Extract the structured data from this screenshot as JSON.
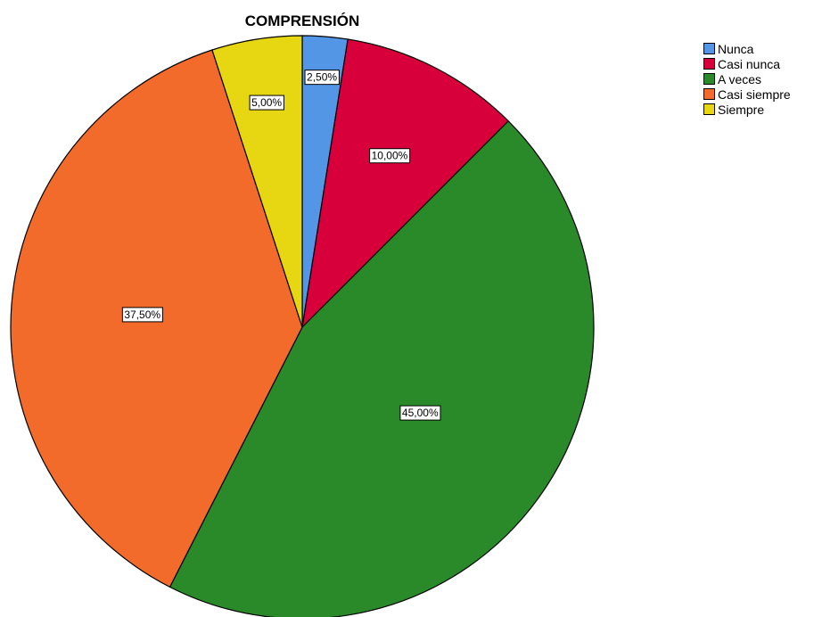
{
  "chart_data": {
    "type": "pie",
    "title": "COMPRENSIÓN",
    "categories": [
      "Nunca",
      "Casi nunca",
      "A veces",
      "Casi siempre",
      "Siempre"
    ],
    "values": [
      2.5,
      10.0,
      45.0,
      37.5,
      5.0
    ],
    "value_labels": [
      "2,50%",
      "10,00%",
      "45,00%",
      "37,50%",
      "5,00%"
    ],
    "colors": [
      "#5496e6",
      "#d8003a",
      "#2a8a2a",
      "#f26b2b",
      "#e6d712"
    ],
    "start": "12 o'clock, clockwise",
    "legend_position": "top-right"
  }
}
